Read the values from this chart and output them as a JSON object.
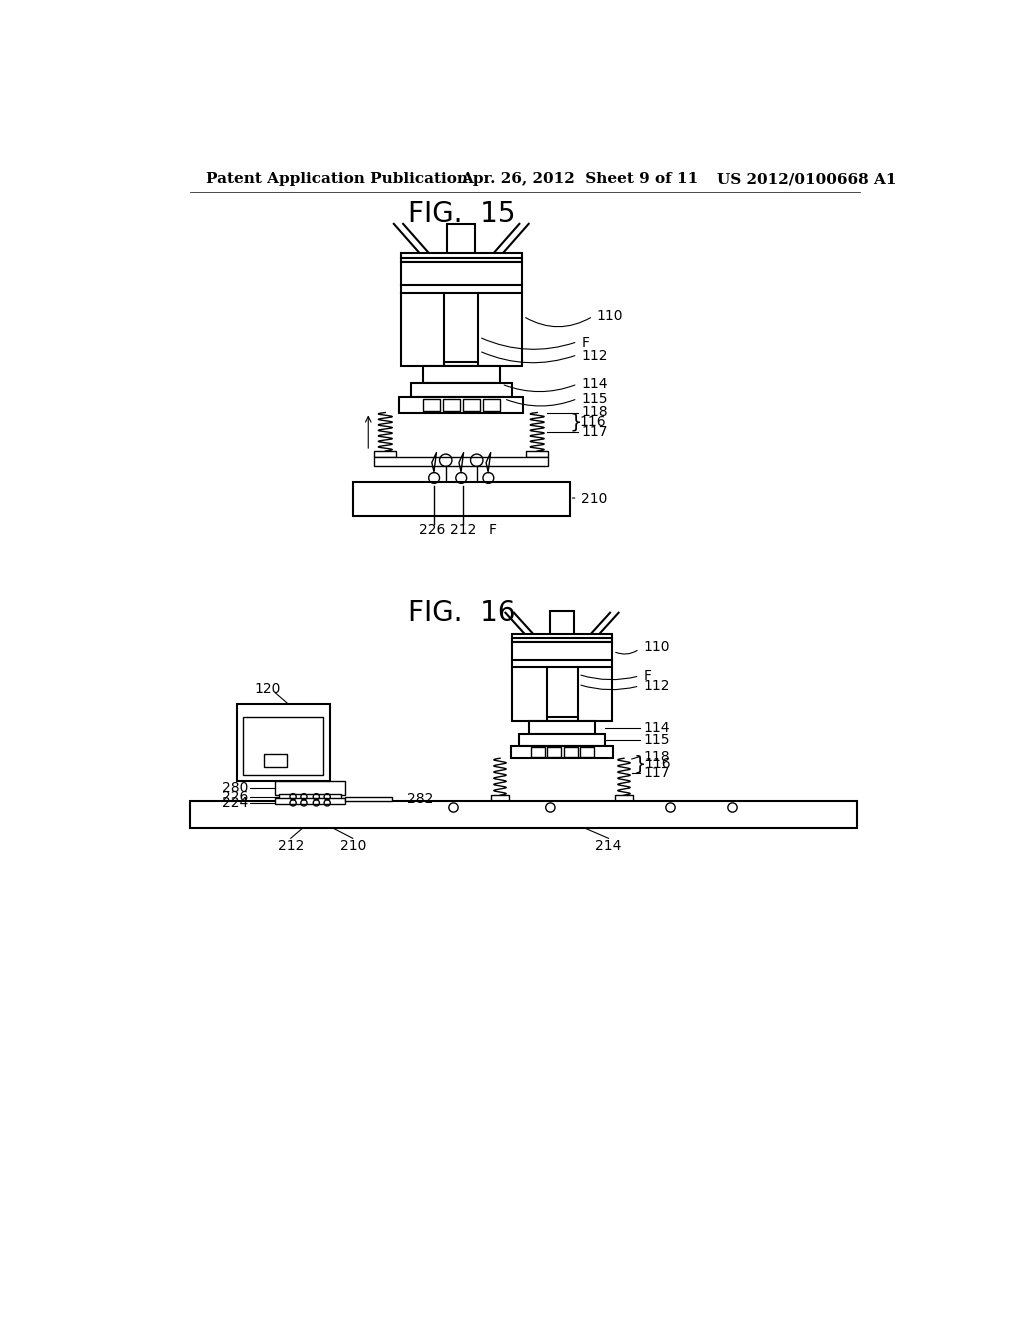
{
  "background_color": "#ffffff",
  "header_left": "Patent Application Publication",
  "header_center": "Apr. 26, 2012  Sheet 9 of 11",
  "header_right": "US 2012/0100668 A1",
  "fig15_title": "FIG.  15",
  "fig16_title": "FIG.  16",
  "line_color": "#000000",
  "lw": 1.5,
  "tlw": 1.0,
  "ann_fs": 10,
  "title_fs": 20,
  "header_fs": 11
}
